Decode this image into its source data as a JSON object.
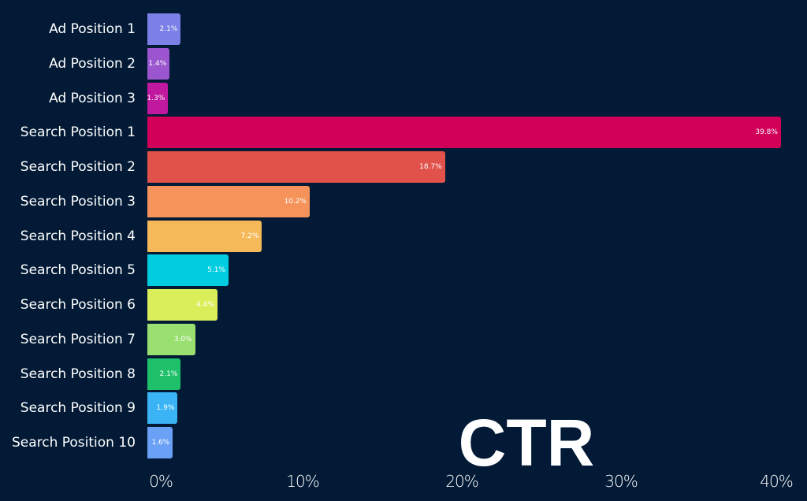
{
  "chart_data": {
    "type": "bar",
    "orientation": "horizontal",
    "title": "CTR",
    "categories": [
      "Ad Position 1",
      "Ad Position 2",
      "Ad Position 3",
      "Search Position 1",
      "Search Position 2",
      "Search Position 3",
      "Search Position 4",
      "Search Position 5",
      "Search Position 6",
      "Search Position 7",
      "Search Position 8",
      "Search Position 9",
      "Search Position 10"
    ],
    "values": [
      2.1,
      1.4,
      1.3,
      39.8,
      18.7,
      10.2,
      7.2,
      5.1,
      4.4,
      3.0,
      2.1,
      1.9,
      1.6
    ],
    "data_labels": [
      "2.1%",
      "1.4%",
      "1.3%",
      "39.8%",
      "18.7%",
      "10.2%",
      "7.2%",
      "5.1%",
      "4.4%",
      "3.0%",
      "2.1%",
      "1.9%",
      "1.6%"
    ],
    "colors": [
      "#7b7fe6",
      "#9a55cf",
      "#c0189f",
      "#d10059",
      "#e0524a",
      "#f6935a",
      "#f6b95a",
      "#00cde0",
      "#daee5a",
      "#99e070",
      "#1fc06a",
      "#3bb4f5",
      "#6aa0f5"
    ],
    "xlim": [
      0,
      40
    ],
    "x_ticks": [
      "0%",
      "10%",
      "20%",
      "30%",
      "40%"
    ],
    "x_tick_values": [
      0,
      10,
      20,
      30,
      40
    ],
    "grid": false,
    "legend": "none",
    "background": "#021a36"
  }
}
